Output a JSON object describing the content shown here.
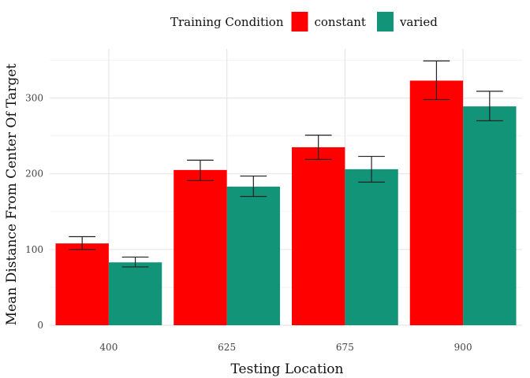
{
  "chart_data": {
    "type": "bar",
    "title": "",
    "xlabel": "Testing Location",
    "ylabel": "Mean Distance From Center Of Target",
    "categories": [
      "400",
      "625",
      "675",
      "900"
    ],
    "series": [
      {
        "name": "constant",
        "color": "#ff0000",
        "values": [
          108,
          205,
          235,
          323
        ],
        "error_low": [
          100,
          191,
          219,
          298
        ],
        "error_high": [
          117,
          218,
          251,
          349
        ]
      },
      {
        "name": "varied",
        "color": "#129478",
        "values": [
          83,
          183,
          206,
          289
        ],
        "error_low": [
          77,
          170,
          189,
          270
        ],
        "error_high": [
          90,
          197,
          223,
          309
        ]
      }
    ],
    "ylim": [
      0,
      365
    ],
    "yticks": [
      0,
      100,
      200,
      300
    ],
    "legend": {
      "title": "Training Condition",
      "position": "top"
    },
    "grid": true
  }
}
